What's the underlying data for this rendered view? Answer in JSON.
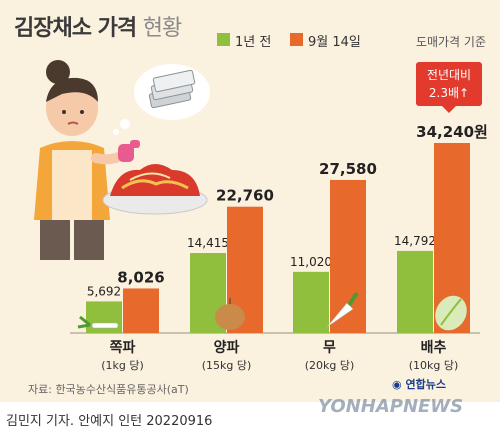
{
  "header": {
    "title_main": "김장채소 가격",
    "title_sub": "현황",
    "basis": "도매가격 기준"
  },
  "colors": {
    "last_year": "#8fbf3c",
    "this_year": "#e8692c",
    "background": "#fbf1df",
    "callout": "#e23a2c"
  },
  "callout": {
    "line1": "전년대비",
    "line2": "2.3배↑"
  },
  "source": "자료: 한국농수산식품유통공사(aT)",
  "logo": "연합뉴스",
  "credit": "김민지 기자. 안예지 인턴  20220916",
  "watermark": "YONHAPNEWS",
  "chart_data": {
    "type": "bar",
    "title": "김장채소 가격 현황",
    "categories": [
      "쪽파",
      "양파",
      "무",
      "배추"
    ],
    "category_units": [
      "(1kg 당)",
      "(15kg 당)",
      "(20kg 당)",
      "(10kg 당)"
    ],
    "series": [
      {
        "name": "1년 전",
        "values": [
          5692,
          14415,
          11020,
          14792
        ],
        "labels": [
          "5,692",
          "14,415",
          "11,020",
          "14,792"
        ],
        "color": "#8fbf3c"
      },
      {
        "name": "9월 14일",
        "values": [
          8026,
          22760,
          27580,
          34240
        ],
        "labels": [
          "8,026",
          "22,760",
          "27,580",
          "34,240원"
        ],
        "color": "#e8692c"
      }
    ],
    "ylim": [
      0,
      34240
    ],
    "grid": false,
    "legend": "top"
  }
}
